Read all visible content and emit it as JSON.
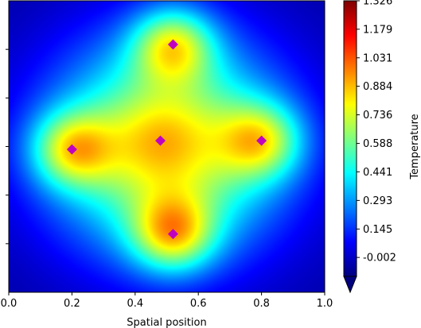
{
  "chart_data": {
    "type": "heatmap",
    "xlabel": "Spatial position",
    "ylabel": "",
    "colorbar_label": "Temperature",
    "colormap": "jet",
    "xlim": [
      0.0,
      1.0
    ],
    "ylim": [
      0.0,
      1.0
    ],
    "x_ticks": [
      "0.0",
      "0.2",
      "0.4",
      "0.6",
      "0.8",
      "1.0"
    ],
    "y_tick_count": 5,
    "vmin": -0.1,
    "vmax": 1.326,
    "colorbar_ticks": [
      "-0.002",
      "0.145",
      "0.293",
      "0.441",
      "0.588",
      "0.736",
      "0.884",
      "1.031",
      "1.179",
      "1.326"
    ],
    "colorbar_extend": "min",
    "sources": [
      {
        "x": 0.52,
        "y": 0.85,
        "amplitude": 1.0
      },
      {
        "x": 0.8,
        "y": 0.52,
        "amplitude": 0.9
      },
      {
        "x": 0.2,
        "y": 0.49,
        "amplitude": 0.95
      },
      {
        "x": 0.52,
        "y": 0.2,
        "amplitude": 1.05
      },
      {
        "x": 0.48,
        "y": 0.52,
        "amplitude": 0.2
      }
    ],
    "marker_color": "#c000c0",
    "marker_shape": "diamond"
  }
}
